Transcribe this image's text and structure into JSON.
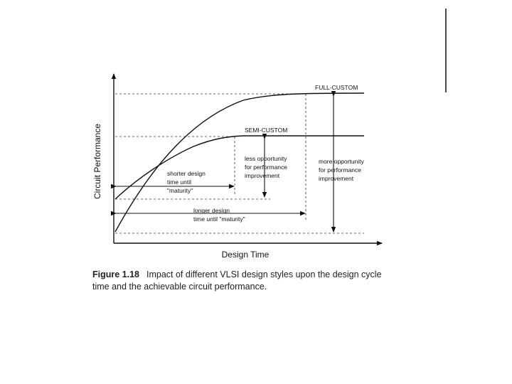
{
  "diagram": {
    "y_axis_label": "Circuit Performance",
    "x_axis_label": "Design Time",
    "curves": [
      {
        "name": "FULL-CUSTOM"
      },
      {
        "name": "SEMI-CUSTOM"
      }
    ],
    "annotations": {
      "shorter": [
        "shorter design",
        "time until",
        "\"maturity\""
      ],
      "longer": [
        "longer design",
        "time until \"maturity\""
      ],
      "less": [
        "less opportunity",
        "for performance",
        "improvement"
      ],
      "more": [
        "more opportunity",
        "for performance",
        "improvement"
      ]
    }
  },
  "caption": {
    "figure_label": "Figure 1.18",
    "text": "Impact of different VLSI design styles upon the design cycle time and the achievable circuit performance."
  }
}
